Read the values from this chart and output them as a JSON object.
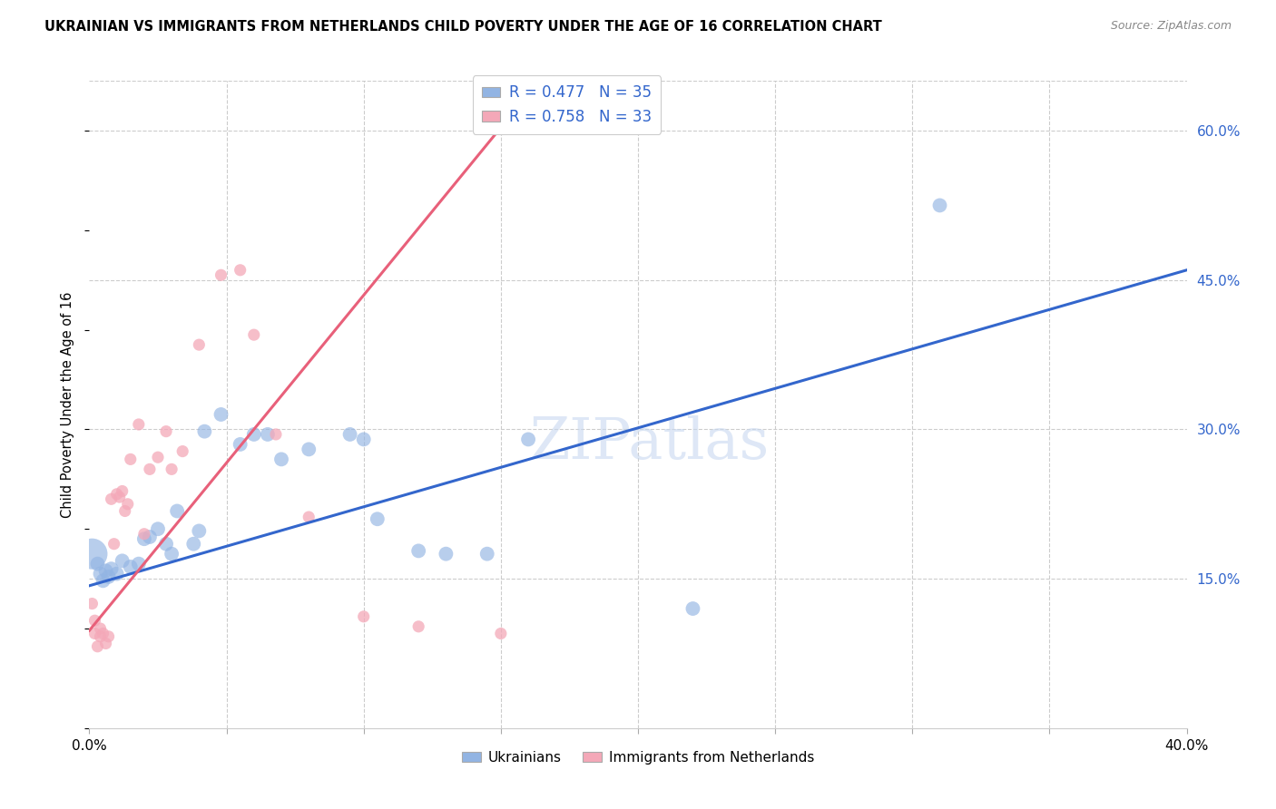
{
  "title": "UKRAINIAN VS IMMIGRANTS FROM NETHERLANDS CHILD POVERTY UNDER THE AGE OF 16 CORRELATION CHART",
  "source": "Source: ZipAtlas.com",
  "ylabel": "Child Poverty Under the Age of 16",
  "xlim": [
    0.0,
    0.4
  ],
  "ylim": [
    0.0,
    0.65
  ],
  "ytick_labels_right": [
    "60.0%",
    "45.0%",
    "30.0%",
    "15.0%"
  ],
  "ytick_vals_right": [
    0.6,
    0.45,
    0.3,
    0.15
  ],
  "watermark": "ZIPatlas",
  "legend_blue_r": "R = 0.477",
  "legend_blue_n": "N = 35",
  "legend_pink_r": "R = 0.758",
  "legend_pink_n": "N = 33",
  "legend_blue_label": "Ukrainians",
  "legend_pink_label": "Immigrants from Netherlands",
  "blue_color": "#92B4E3",
  "pink_color": "#F4A8B8",
  "trendline_blue": "#3366CC",
  "trendline_pink": "#E8607A",
  "blue_scatter": [
    [
      0.001,
      0.175
    ],
    [
      0.003,
      0.165
    ],
    [
      0.004,
      0.155
    ],
    [
      0.005,
      0.148
    ],
    [
      0.006,
      0.158
    ],
    [
      0.007,
      0.152
    ],
    [
      0.008,
      0.16
    ],
    [
      0.01,
      0.155
    ],
    [
      0.012,
      0.168
    ],
    [
      0.015,
      0.162
    ],
    [
      0.018,
      0.165
    ],
    [
      0.02,
      0.19
    ],
    [
      0.022,
      0.192
    ],
    [
      0.025,
      0.2
    ],
    [
      0.028,
      0.185
    ],
    [
      0.03,
      0.175
    ],
    [
      0.032,
      0.218
    ],
    [
      0.038,
      0.185
    ],
    [
      0.04,
      0.198
    ],
    [
      0.042,
      0.298
    ],
    [
      0.048,
      0.315
    ],
    [
      0.055,
      0.285
    ],
    [
      0.06,
      0.295
    ],
    [
      0.065,
      0.295
    ],
    [
      0.07,
      0.27
    ],
    [
      0.08,
      0.28
    ],
    [
      0.095,
      0.295
    ],
    [
      0.1,
      0.29
    ],
    [
      0.105,
      0.21
    ],
    [
      0.12,
      0.178
    ],
    [
      0.13,
      0.175
    ],
    [
      0.145,
      0.175
    ],
    [
      0.16,
      0.29
    ],
    [
      0.22,
      0.12
    ],
    [
      0.31,
      0.525
    ]
  ],
  "blue_special_large_idx": 0,
  "pink_scatter": [
    [
      0.001,
      0.125
    ],
    [
      0.002,
      0.108
    ],
    [
      0.002,
      0.095
    ],
    [
      0.003,
      0.082
    ],
    [
      0.004,
      0.092
    ],
    [
      0.004,
      0.1
    ],
    [
      0.005,
      0.095
    ],
    [
      0.006,
      0.085
    ],
    [
      0.007,
      0.092
    ],
    [
      0.008,
      0.23
    ],
    [
      0.009,
      0.185
    ],
    [
      0.01,
      0.235
    ],
    [
      0.011,
      0.232
    ],
    [
      0.012,
      0.238
    ],
    [
      0.013,
      0.218
    ],
    [
      0.014,
      0.225
    ],
    [
      0.015,
      0.27
    ],
    [
      0.018,
      0.305
    ],
    [
      0.02,
      0.195
    ],
    [
      0.022,
      0.26
    ],
    [
      0.025,
      0.272
    ],
    [
      0.028,
      0.298
    ],
    [
      0.03,
      0.26
    ],
    [
      0.034,
      0.278
    ],
    [
      0.04,
      0.385
    ],
    [
      0.048,
      0.455
    ],
    [
      0.055,
      0.46
    ],
    [
      0.06,
      0.395
    ],
    [
      0.068,
      0.295
    ],
    [
      0.08,
      0.212
    ],
    [
      0.1,
      0.112
    ],
    [
      0.12,
      0.102
    ],
    [
      0.15,
      0.095
    ]
  ],
  "blue_trendline_x": [
    0.0,
    0.4
  ],
  "blue_trendline_y": [
    0.143,
    0.46
  ],
  "pink_trendline_x": [
    0.0,
    0.155
  ],
  "pink_trendline_y": [
    0.098,
    0.62
  ],
  "background_color": "#ffffff",
  "grid_color": "#cccccc"
}
